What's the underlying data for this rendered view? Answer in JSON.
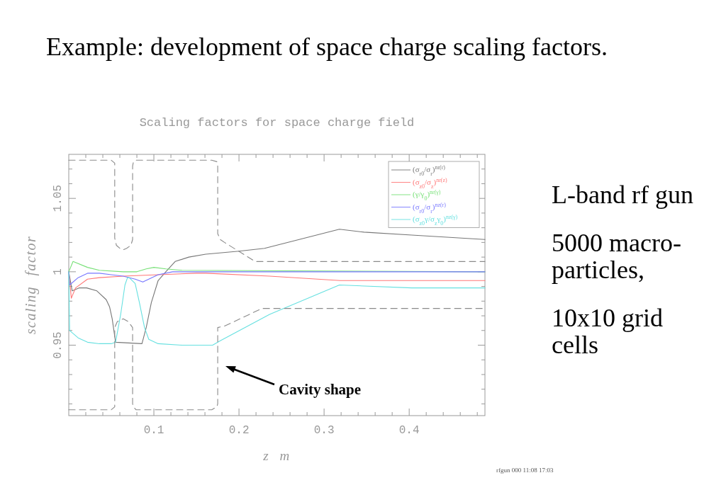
{
  "chart_data": {
    "type": "line",
    "title": "Example: development of space charge scaling factors.",
    "subtitle": "Scaling factors for space charge field",
    "xlabel": "z m",
    "ylabel": "scaling factor",
    "xlim": [
      0,
      0.489
    ],
    "ylim": [
      0.902,
      1.08
    ],
    "xticks": [
      {
        "value": 0.02,
        "label": null
      },
      {
        "value": 0.04,
        "label": null
      },
      {
        "value": 0.06,
        "label": null
      },
      {
        "value": 0.08,
        "label": null
      },
      0.1,
      {
        "value": 0.12,
        "label": null
      },
      {
        "value": 0.14,
        "label": null
      },
      {
        "value": 0.16,
        "label": null
      },
      {
        "value": 0.18,
        "label": null
      },
      0.2,
      {
        "value": 0.22,
        "label": null
      },
      {
        "value": 0.24,
        "label": null
      },
      {
        "value": 0.26,
        "label": null
      },
      {
        "value": 0.28,
        "label": null
      },
      0.3,
      {
        "value": 0.32,
        "label": null
      },
      {
        "value": 0.34,
        "label": null
      },
      {
        "value": 0.36,
        "label": null
      },
      {
        "value": 0.38,
        "label": null
      },
      0.4,
      {
        "value": 0.42,
        "label": null
      },
      {
        "value": 0.44,
        "label": null
      },
      {
        "value": 0.46,
        "label": null
      },
      {
        "value": 0.48,
        "label": null
      }
    ],
    "yticks": [
      {
        "value": 0.91,
        "label": null
      },
      {
        "value": 0.92,
        "label": null
      },
      {
        "value": 0.93,
        "label": null
      },
      {
        "value": 0.94,
        "label": null
      },
      0.95,
      {
        "value": 0.96,
        "label": null
      },
      {
        "value": 0.97,
        "label": null
      },
      {
        "value": 0.98,
        "label": null
      },
      {
        "value": 0.99,
        "label": null
      },
      1,
      {
        "value": 1.01,
        "label": null
      },
      {
        "value": 1.02,
        "label": null
      },
      {
        "value": 1.03,
        "label": null
      },
      {
        "value": 1.04,
        "label": null
      },
      1.05,
      {
        "value": 1.06,
        "label": null
      },
      {
        "value": 1.07,
        "label": null
      }
    ],
    "legend": "top right",
    "series": [
      {
        "name": "(σ$_{r0}$/σ$_{r}$)$^{nr(r)}$",
        "color": "#777777",
        "x": [
          0,
          0.004,
          0.012,
          0.021,
          0.033,
          0.044,
          0.048,
          0.051,
          0.055,
          0.086,
          0.091,
          0.097,
          0.105,
          0.114,
          0.125,
          0.141,
          0.161,
          0.2,
          0.23,
          0.318,
          0.347,
          0.403,
          0.489
        ],
        "values": [
          1,
          0.987,
          0.989,
          0.989,
          0.987,
          0.981,
          0.976,
          0.968,
          0.952,
          0.951,
          0.962,
          0.979,
          0.994,
          1.0,
          1.007,
          1.01,
          1.012,
          1.014,
          1.016,
          1.029,
          1.027,
          1.025,
          1.022
        ]
      },
      {
        "name": "(σ$_{z0}$/σ$_{z}$)$^{nr(z)}$",
        "color": "#ff7777",
        "x": [
          0,
          0.003,
          0.008,
          0.022,
          0.036,
          0.064,
          0.105,
          0.15,
          0.161,
          0.236,
          0.319,
          0.489
        ],
        "values": [
          1,
          0.982,
          0.989,
          0.995,
          0.996,
          0.997,
          0.998,
          0.999,
          0.999,
          0.997,
          0.994,
          0.994
        ]
      },
      {
        "name": "(γ/γ$_{0}$)$^{nr(γ)}$",
        "color": "#77e077",
        "x": [
          0,
          0.005,
          0.022,
          0.036,
          0.064,
          0.08,
          0.091,
          0.1,
          0.114,
          0.133,
          0.489
        ],
        "values": [
          1,
          1.007,
          1.003,
          1.001,
          1.0,
          1.0,
          1.002,
          1.003,
          1.002,
          1.001,
          1.0
        ]
      },
      {
        "name": "(σ$_{r0}$/σ$_{r}$)$^{nz(r)}$",
        "color": "#7777ff",
        "x": [
          0,
          0.001,
          0.011,
          0.022,
          0.036,
          0.05,
          0.064,
          0.078,
          0.087,
          0.094,
          0.105,
          0.122,
          0.489
        ],
        "values": [
          1,
          0.991,
          0.996,
          0.999,
          0.999,
          0.998,
          0.997,
          0.995,
          0.993,
          0.995,
          0.998,
          1.0,
          1.0
        ]
      },
      {
        "name": "(σ$_{z0}$γ/σ$_{z}$γ$_{0}$)$^{nz(γ)}$",
        "color": "#66e0e0",
        "x": [
          0,
          0.001,
          0.003,
          0.011,
          0.022,
          0.036,
          0.05,
          0.055,
          0.061,
          0.066,
          0.069,
          0.071,
          0.078,
          0.083,
          0.089,
          0.094,
          0.105,
          0.133,
          0.169,
          0.178,
          0.236,
          0.318,
          0.403,
          0.489
        ],
        "values": [
          1,
          0.96,
          0.959,
          0.955,
          0.952,
          0.951,
          0.951,
          0.952,
          0.971,
          0.991,
          0.996,
          0.996,
          0.992,
          0.979,
          0.962,
          0.954,
          0.951,
          0.95,
          0.95,
          0.953,
          0.971,
          0.991,
          0.989,
          0.989
        ]
      },
      {
        "color": "#8a8a8a",
        "line_style": "dashed",
        "x": [
          0,
          0.05,
          0.054,
          0.054,
          0.056,
          0.06,
          0.064,
          0.068,
          0.073,
          0.075,
          0.075,
          0.076,
          0.079,
          0.168,
          0.174,
          0.175,
          0.175,
          0.178,
          0.183,
          0.219,
          0.224,
          0.489
        ],
        "values": [
          1.076,
          1.076,
          1.074,
          1.023,
          1.018,
          1.016,
          1.015,
          1.016,
          1.018,
          1.022,
          1.072,
          1.075,
          1.076,
          1.076,
          1.075,
          1.072,
          1.026,
          1.022,
          1.02,
          1.007,
          1.007,
          1.007
        ]
      },
      {
        "color": "#8a8a8a",
        "line_style": "dashed",
        "x": [
          0,
          0.05,
          0.054,
          0.054,
          0.057,
          0.064,
          0.07,
          0.075,
          0.075,
          0.076,
          0.079,
          0.168,
          0.174,
          0.175,
          0.175,
          0.183,
          0.227,
          0.489
        ],
        "values": [
          0.906,
          0.906,
          0.908,
          0.962,
          0.966,
          0.968,
          0.966,
          0.962,
          0.91,
          0.908,
          0.906,
          0.906,
          0.908,
          0.91,
          0.962,
          0.963,
          0.975,
          0.975
        ]
      }
    ],
    "annotations": [
      "L-band rf gun",
      "5000 macro-particles,",
      "10x10 grid cells",
      "Cavity shape",
      "rfgun 000 11:08 17:03"
    ]
  }
}
